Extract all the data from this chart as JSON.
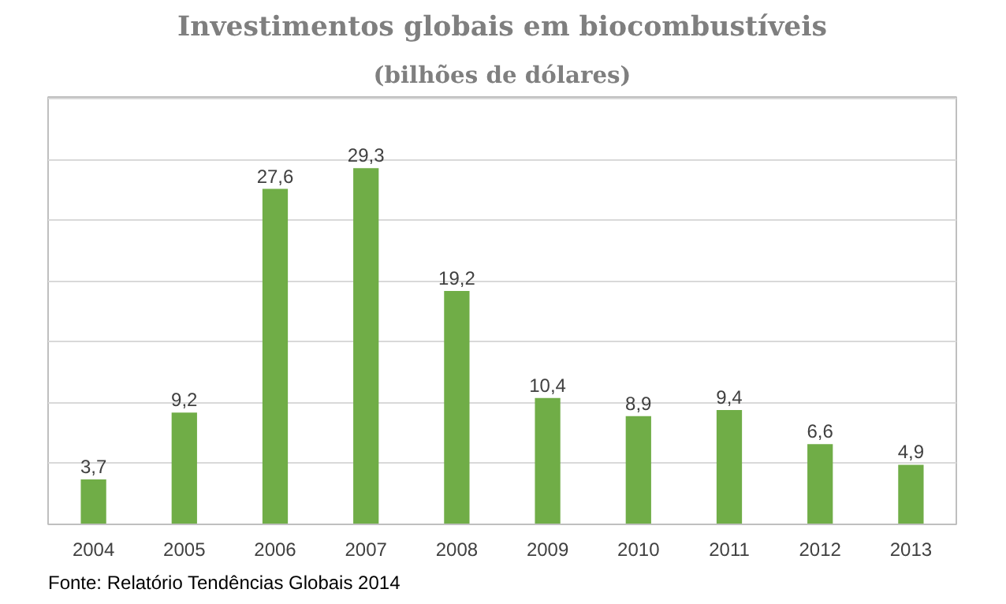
{
  "chart_data": {
    "type": "bar",
    "title": "Investimentos globais em biocombustíveis",
    "subtitle": "(bilhões de dólares)",
    "categories": [
      "2004",
      "2005",
      "2006",
      "2007",
      "2008",
      "2009",
      "2010",
      "2011",
      "2012",
      "2013"
    ],
    "values": [
      3.7,
      9.2,
      27.6,
      29.3,
      19.2,
      10.4,
      8.9,
      9.4,
      6.6,
      4.9
    ],
    "color": "#70ad47",
    "value_labels": [
      "3,7",
      "9,2",
      "27,6",
      "29,3",
      "19,2",
      "10,4",
      "8,9",
      "9,4",
      "6,6",
      "4,9"
    ],
    "grid": "y",
    "tick_labels": "x",
    "annotations": [
      "Fonte: Relatório Tendências Globais 2014"
    ]
  }
}
